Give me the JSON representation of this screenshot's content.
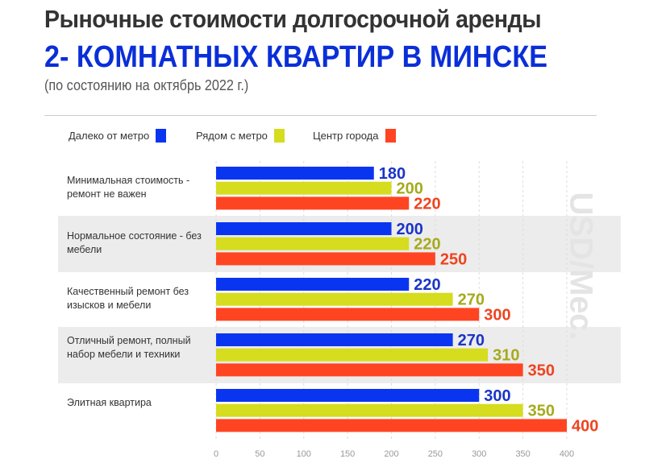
{
  "title_line1": "Рыночные стоимости долгосрочной аренды",
  "title_line2": "2- КОМНАТНЫХ КВАРТИР В МИНСКЕ",
  "subtitle": "(по состоянию на октябрь 2022 г.)",
  "watermark": "USD/Мес.",
  "chart_data": {
    "type": "bar",
    "orientation": "horizontal",
    "categories": [
      "Минимальная стоимость - ремонт не важен",
      "Нормальное состояние - без мебели",
      "Качественный ремонт без изысков и мебели",
      "Отличный ремонт, полный набор мебели и техники",
      "Элитная квартира"
    ],
    "series": [
      {
        "name": "Далеко от метро",
        "color": "#0a35f0",
        "label_color": "#1a35c8",
        "values": [
          180,
          200,
          220,
          270,
          300
        ]
      },
      {
        "name": "Рядом с метро",
        "color": "#d6dc1e",
        "label_color": "#a5ab1c",
        "values": [
          200,
          220,
          270,
          310,
          350
        ]
      },
      {
        "name": "Центр города",
        "color": "#ff4422",
        "label_color": "#ee4420",
        "values": [
          220,
          250,
          300,
          350,
          400
        ]
      }
    ],
    "xlim": [
      0,
      400
    ],
    "xticks": [
      "0",
      "50",
      "100",
      "150",
      "200",
      "250",
      "300",
      "350",
      "400"
    ],
    "ylabel": "USD/Мес.",
    "legend": "top",
    "grid": true
  }
}
